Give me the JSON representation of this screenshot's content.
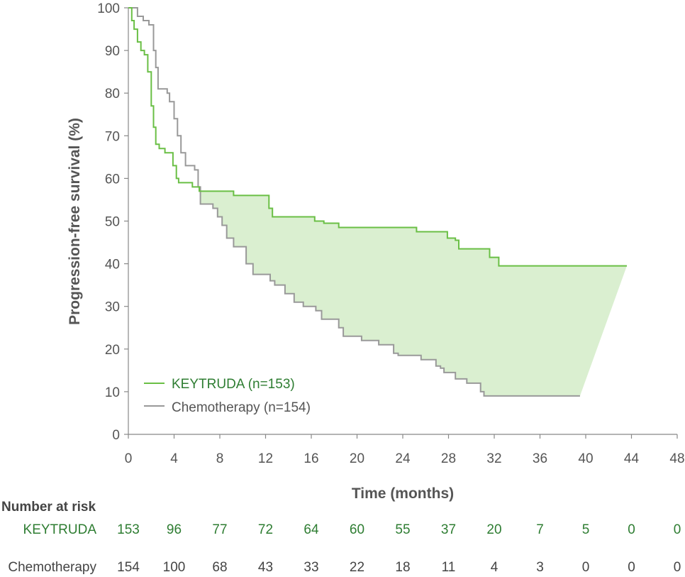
{
  "chart_data": {
    "type": "line",
    "subtype": "kaplan-meier step plot",
    "ylabel": "Progression-free survival (%)",
    "xlabel": "Time (months)",
    "xlim": [
      0,
      48
    ],
    "ylim": [
      0,
      100
    ],
    "x_ticks": [
      "0",
      "4",
      "8",
      "12",
      "16",
      "20",
      "24",
      "28",
      "32",
      "36",
      "40",
      "44",
      "48"
    ],
    "y_ticks": [
      "0",
      "10",
      "20",
      "30",
      "40",
      "50",
      "60",
      "70",
      "80",
      "90",
      "100"
    ],
    "grid": false,
    "legend_position": "bottom-left",
    "shaded_region": "between series",
    "series": [
      {
        "name": "KEYTRUDA (n=153)",
        "color": "#6abf45",
        "points": [
          [
            0,
            100
          ],
          [
            0.3,
            97
          ],
          [
            0.5,
            95
          ],
          [
            0.8,
            92
          ],
          [
            1.1,
            90
          ],
          [
            1.4,
            89
          ],
          [
            1.7,
            85
          ],
          [
            2.0,
            77
          ],
          [
            2.2,
            72
          ],
          [
            2.4,
            68
          ],
          [
            2.7,
            67
          ],
          [
            3.2,
            66
          ],
          [
            3.9,
            63
          ],
          [
            4.2,
            60
          ],
          [
            4.4,
            59
          ],
          [
            5.6,
            58
          ],
          [
            6.2,
            57
          ],
          [
            9.2,
            56
          ],
          [
            12.3,
            53
          ],
          [
            12.6,
            51
          ],
          [
            16.3,
            50
          ],
          [
            17.1,
            49.5
          ],
          [
            18.4,
            48.5
          ],
          [
            25.2,
            47.5
          ],
          [
            27.9,
            46
          ],
          [
            28.6,
            45.5
          ],
          [
            28.9,
            43.5
          ],
          [
            31.6,
            41.5
          ],
          [
            32.4,
            39.5
          ],
          [
            43.6,
            39.5
          ]
        ]
      },
      {
        "name": "Chemotherapy (n=154)",
        "color": "#999999",
        "points": [
          [
            0,
            100
          ],
          [
            0.8,
            98
          ],
          [
            1.3,
            97
          ],
          [
            1.8,
            96
          ],
          [
            2.2,
            90
          ],
          [
            2.4,
            86
          ],
          [
            2.6,
            81
          ],
          [
            3.4,
            80
          ],
          [
            3.6,
            78
          ],
          [
            4.0,
            74
          ],
          [
            4.3,
            70
          ],
          [
            4.6,
            66
          ],
          [
            5.0,
            63
          ],
          [
            5.8,
            62
          ],
          [
            6.1,
            58
          ],
          [
            6.3,
            54
          ],
          [
            7.4,
            53
          ],
          [
            7.8,
            51
          ],
          [
            8.2,
            49
          ],
          [
            8.6,
            46
          ],
          [
            9.2,
            44
          ],
          [
            10.3,
            40
          ],
          [
            10.9,
            37.5
          ],
          [
            12.4,
            36
          ],
          [
            12.8,
            35
          ],
          [
            13.7,
            33
          ],
          [
            14.5,
            31
          ],
          [
            15.3,
            30
          ],
          [
            16.4,
            29
          ],
          [
            16.9,
            27
          ],
          [
            18.4,
            25
          ],
          [
            18.8,
            23
          ],
          [
            20.4,
            22
          ],
          [
            21.9,
            21
          ],
          [
            23.2,
            19
          ],
          [
            23.6,
            18.5
          ],
          [
            25.6,
            17.5
          ],
          [
            26.9,
            16
          ],
          [
            27.3,
            15.5
          ],
          [
            27.6,
            14.5
          ],
          [
            28.6,
            13
          ],
          [
            29.6,
            12
          ],
          [
            30.8,
            10
          ],
          [
            31.1,
            9
          ],
          [
            39.5,
            9
          ]
        ]
      }
    ],
    "risk_table": {
      "title": "Number at risk",
      "times": [
        0,
        4,
        8,
        12,
        16,
        20,
        24,
        28,
        32,
        36,
        40,
        44,
        48
      ],
      "rows": [
        {
          "label": "KEYTRUDA",
          "color": "#2e7d32",
          "values": [
            "153",
            "96",
            "77",
            "72",
            "64",
            "60",
            "55",
            "37",
            "20",
            "7",
            "5",
            "0",
            "0"
          ]
        },
        {
          "label": "Chemotherapy",
          "color": "#444444",
          "values": [
            "154",
            "100",
            "68",
            "43",
            "33",
            "22",
            "18",
            "11",
            "4",
            "3",
            "0",
            "0",
            "0"
          ]
        }
      ]
    }
  }
}
